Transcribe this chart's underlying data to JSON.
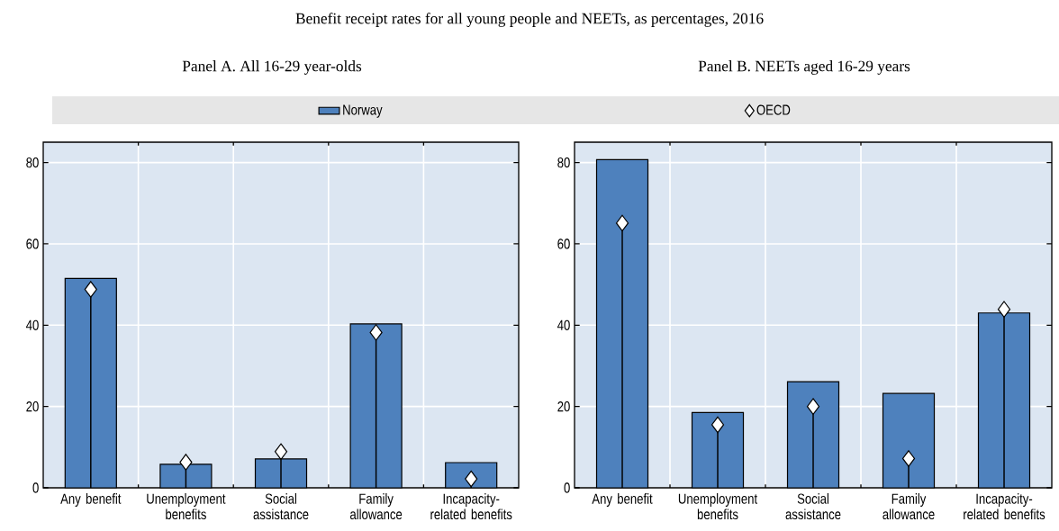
{
  "chart_data": [
    {
      "type": "bar",
      "title": "Benefit receipt rates for all young people and NEETs, as percentages, 2016",
      "subtitle": "Panel A. All 16-29 year-olds",
      "categories": [
        "Any benefit",
        "Unemployment benefits",
        "Social assistance",
        "Family allowance",
        "Incapacity-related benefits"
      ],
      "series": [
        {
          "name": "Norway",
          "color": "#4e81bd",
          "values": [
            51.5,
            5.8,
            7.1,
            40.3,
            6.2
          ]
        },
        {
          "name": "OECD",
          "type": "lollipop",
          "marker": "diamond",
          "color": "#ffffff",
          "values": [
            48.8,
            6.3,
            8.9,
            38.2,
            2.2
          ]
        }
      ],
      "ylim": [
        0,
        85
      ],
      "yticks": [
        0,
        20,
        40,
        60,
        80
      ],
      "grid": true,
      "legend": "top"
    },
    {
      "type": "bar",
      "subtitle": "Panel B. NEETs aged 16-29 years",
      "categories": [
        "Any benefit",
        "Unemployment benefits",
        "Social assistance",
        "Family allowance",
        "Incapacity-related benefits"
      ],
      "series": [
        {
          "color": "#4e81bd",
          "values": [
            80.7,
            18.5,
            26.1,
            23.2,
            43.0
          ]
        },
        {
          "type": "lollipop",
          "marker": "diamond",
          "color": "#ffffff",
          "values": [
            65.1,
            15.5,
            20.0,
            7.2,
            43.9
          ]
        }
      ],
      "ylim": [
        0,
        85
      ],
      "yticks": [
        0,
        20,
        40,
        60,
        80
      ],
      "grid": true
    }
  ]
}
